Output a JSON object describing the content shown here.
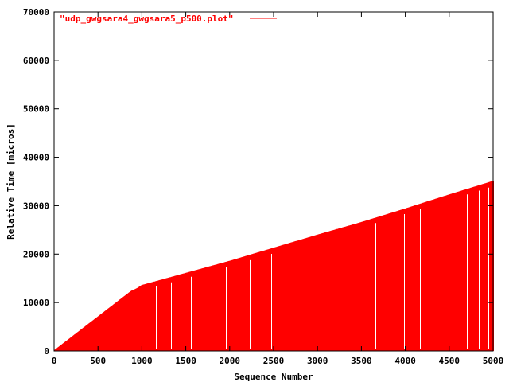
{
  "chart_data": {
    "type": "line",
    "title": "",
    "xlabel": "Sequence Number",
    "ylabel": "Relative Time [micros]",
    "xlim": [
      0,
      5000
    ],
    "ylim": [
      0,
      70000
    ],
    "xticks": [
      0,
      500,
      1000,
      1500,
      2000,
      2500,
      3000,
      3500,
      4000,
      4500,
      5000
    ],
    "yticks": [
      0,
      10000,
      20000,
      30000,
      40000,
      50000,
      60000,
      70000
    ],
    "xtick_labels": [
      "0",
      "500",
      "1000",
      "1500",
      "2000",
      "2500",
      "3000",
      "3500",
      "4000",
      "4500",
      "5000"
    ],
    "ytick_labels": [
      "0",
      "10000",
      "20000",
      "30000",
      "40000",
      "50000",
      "60000",
      "70000"
    ],
    "grid": false,
    "legend_position": "top-left",
    "color": "#ff0000",
    "series": [
      {
        "name": "\"udp_gwgsara4_gwgsara5_p500.plot\"",
        "style": "impulses",
        "x": [
          0,
          100,
          200,
          300,
          400,
          500,
          600,
          700,
          800,
          880,
          950,
          1000,
          1100,
          1500,
          2000,
          2500,
          3000,
          3500,
          4000,
          4500,
          5000
        ],
        "y": [
          0,
          1400,
          2800,
          4200,
          5600,
          7000,
          8400,
          9800,
          11200,
          12300,
          12900,
          13500,
          14000,
          16000,
          18500,
          21200,
          23900,
          26500,
          29300,
          32200,
          35000
        ]
      }
    ]
  }
}
